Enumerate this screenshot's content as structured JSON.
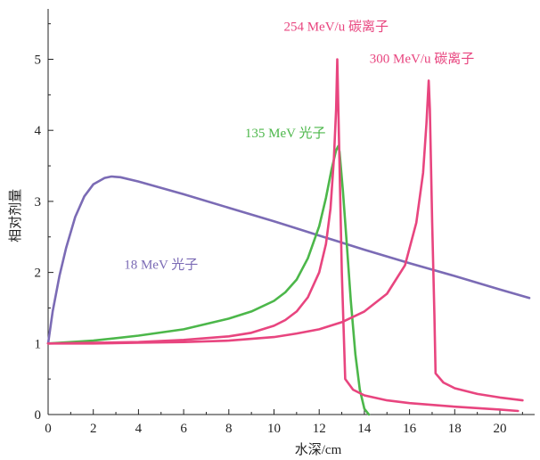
{
  "chart_data": {
    "type": "line",
    "xlabel": "水深/cm",
    "ylabel": "相对剂量",
    "xlim": [
      0,
      21.3
    ],
    "ylim": [
      0,
      5.6
    ],
    "xticks": [
      0,
      2,
      4,
      6,
      8,
      10,
      12,
      14,
      16,
      18,
      20
    ],
    "yticks": [
      0,
      1,
      2,
      3,
      4,
      5
    ],
    "grid": false,
    "series": [
      {
        "name": "18 MeV 光子",
        "color": "#7b6bb5",
        "points": [
          [
            0,
            1.0
          ],
          [
            0.2,
            1.45
          ],
          [
            0.5,
            1.95
          ],
          [
            0.8,
            2.35
          ],
          [
            1.2,
            2.78
          ],
          [
            1.6,
            3.07
          ],
          [
            2.0,
            3.24
          ],
          [
            2.5,
            3.33
          ],
          [
            2.8,
            3.35
          ],
          [
            3.2,
            3.34
          ],
          [
            4,
            3.28
          ],
          [
            6,
            3.1
          ],
          [
            8,
            2.91
          ],
          [
            10,
            2.72
          ],
          [
            12,
            2.52
          ],
          [
            14,
            2.32
          ],
          [
            16,
            2.13
          ],
          [
            18,
            1.95
          ],
          [
            20,
            1.76
          ],
          [
            21.3,
            1.64
          ]
        ]
      },
      {
        "name": "135 MeV 光子",
        "color": "#4cb74a",
        "points": [
          [
            0,
            1.0
          ],
          [
            2,
            1.04
          ],
          [
            4,
            1.11
          ],
          [
            6,
            1.2
          ],
          [
            8,
            1.35
          ],
          [
            9,
            1.45
          ],
          [
            10,
            1.6
          ],
          [
            10.5,
            1.72
          ],
          [
            11,
            1.9
          ],
          [
            11.5,
            2.2
          ],
          [
            12,
            2.65
          ],
          [
            12.3,
            3.05
          ],
          [
            12.55,
            3.45
          ],
          [
            12.75,
            3.72
          ],
          [
            12.85,
            3.78
          ],
          [
            12.9,
            3.7
          ],
          [
            13.05,
            3.15
          ],
          [
            13.2,
            2.5
          ],
          [
            13.4,
            1.6
          ],
          [
            13.6,
            0.85
          ],
          [
            13.8,
            0.35
          ],
          [
            14.0,
            0.08
          ],
          [
            14.2,
            0.0
          ]
        ]
      },
      {
        "name": "254 MeV/u 碳离子",
        "color": "#e8457f",
        "points": [
          [
            0,
            1.0
          ],
          [
            2,
            1.01
          ],
          [
            4,
            1.02
          ],
          [
            6,
            1.05
          ],
          [
            8,
            1.1
          ],
          [
            9,
            1.15
          ],
          [
            10,
            1.25
          ],
          [
            10.5,
            1.33
          ],
          [
            11,
            1.45
          ],
          [
            11.5,
            1.65
          ],
          [
            12,
            2.0
          ],
          [
            12.3,
            2.4
          ],
          [
            12.5,
            2.9
          ],
          [
            12.65,
            3.6
          ],
          [
            12.75,
            4.3
          ],
          [
            12.8,
            5.0
          ],
          [
            12.85,
            4.3
          ],
          [
            13.0,
            2.0
          ],
          [
            13.15,
            0.5
          ],
          [
            13.5,
            0.35
          ],
          [
            14,
            0.27
          ],
          [
            15,
            0.2
          ],
          [
            16,
            0.16
          ],
          [
            18,
            0.11
          ],
          [
            20,
            0.07
          ],
          [
            20.8,
            0.05
          ]
        ]
      },
      {
        "name": "300 MeV/u 碳离子",
        "color": "#e8457f",
        "points": [
          [
            0,
            1.0
          ],
          [
            2,
            1.0
          ],
          [
            4,
            1.01
          ],
          [
            6,
            1.02
          ],
          [
            8,
            1.04
          ],
          [
            10,
            1.09
          ],
          [
            11,
            1.14
          ],
          [
            12,
            1.2
          ],
          [
            13,
            1.3
          ],
          [
            14,
            1.45
          ],
          [
            15,
            1.7
          ],
          [
            15.8,
            2.1
          ],
          [
            16.3,
            2.7
          ],
          [
            16.6,
            3.4
          ],
          [
            16.75,
            4.1
          ],
          [
            16.85,
            4.7
          ],
          [
            16.9,
            4.3
          ],
          [
            17.0,
            2.7
          ],
          [
            17.1,
            1.4
          ],
          [
            17.15,
            0.58
          ],
          [
            17.5,
            0.45
          ],
          [
            18,
            0.37
          ],
          [
            19,
            0.29
          ],
          [
            20,
            0.24
          ],
          [
            21,
            0.2
          ]
        ]
      }
    ],
    "annotations": [
      {
        "text": "254 MeV/u 碳离子",
        "x": 12.75,
        "y": 5.4,
        "color": "#e8457f"
      },
      {
        "text": "300 MeV/u 碳离子",
        "x": 16.55,
        "y": 4.95,
        "color": "#e8457f"
      },
      {
        "text": "135 MeV 光子",
        "x": 10.5,
        "y": 3.9,
        "color": "#4cb74a"
      },
      {
        "text": "18 MeV 光子",
        "x": 5.0,
        "y": 2.05,
        "color": "#7b6bb5"
      }
    ]
  }
}
